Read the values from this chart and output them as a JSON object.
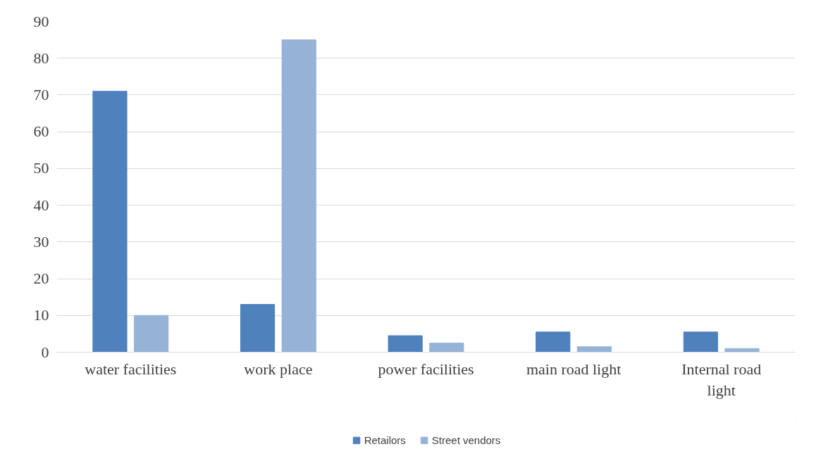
{
  "chart_data": {
    "type": "bar",
    "categories": [
      "water facilities",
      "work place",
      "power facilities",
      "main road light",
      "Internal road light"
    ],
    "series": [
      {
        "name": "Retailors",
        "color": "#4f81bd",
        "values": [
          71,
          13,
          4.5,
          5.5,
          5.5
        ]
      },
      {
        "name": "Street vendors",
        "color": "#95b3d7",
        "values": [
          10,
          85,
          2.5,
          1.5,
          1
        ]
      }
    ],
    "ylim": [
      0,
      90
    ],
    "yticks": [
      0,
      10,
      20,
      30,
      40,
      50,
      60,
      70,
      80,
      90
    ],
    "grid": "y",
    "legend": "bottom"
  }
}
